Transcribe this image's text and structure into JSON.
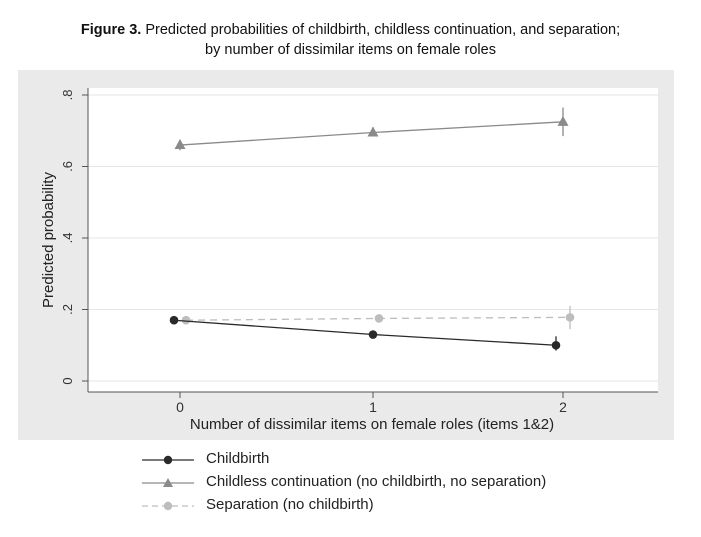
{
  "caption": {
    "figure_label": "Figure 3.",
    "line1": "Predicted probabilities of childbirth, childless continuation, and separation;",
    "line2": "by number of dissimilar items on female roles"
  },
  "chart_data": {
    "type": "line",
    "xlabel": "Number of dissimilar items on female roles (items 1&2)",
    "ylabel": "Predicted probability",
    "x": [
      0,
      1,
      2
    ],
    "x_tick_labels": [
      "0",
      "1",
      "2"
    ],
    "y_ticks": [
      0,
      0.2,
      0.4,
      0.6,
      0.8
    ],
    "y_tick_labels": [
      "0",
      ".2",
      ".4",
      ".6",
      ".8"
    ],
    "ylim": [
      0,
      0.8
    ],
    "grid": true,
    "series": [
      {
        "name": "Childbirth",
        "values": [
          0.17,
          0.13,
          0.1
        ],
        "ci_low": [
          0.16,
          0.125,
          0.085
        ],
        "ci_high": [
          0.18,
          0.14,
          0.125
        ],
        "marker": "circle",
        "color": "#2a2a2a",
        "dash": "solid"
      },
      {
        "name": "Childless continuation (no childbirth, no separation)",
        "values": [
          0.66,
          0.695,
          0.725
        ],
        "ci_low": [
          0.645,
          0.685,
          0.685
        ],
        "ci_high": [
          0.675,
          0.71,
          0.765
        ],
        "marker": "triangle",
        "color": "#8a8a8a",
        "dash": "solid"
      },
      {
        "name": "Separation (no childbirth)",
        "values": [
          0.17,
          0.175,
          0.178
        ],
        "ci_low": [
          0.16,
          0.165,
          0.145
        ],
        "ci_high": [
          0.18,
          0.185,
          0.21
        ],
        "marker": "circle",
        "color": "#bdbdbd",
        "dash": "dashed"
      }
    ]
  }
}
